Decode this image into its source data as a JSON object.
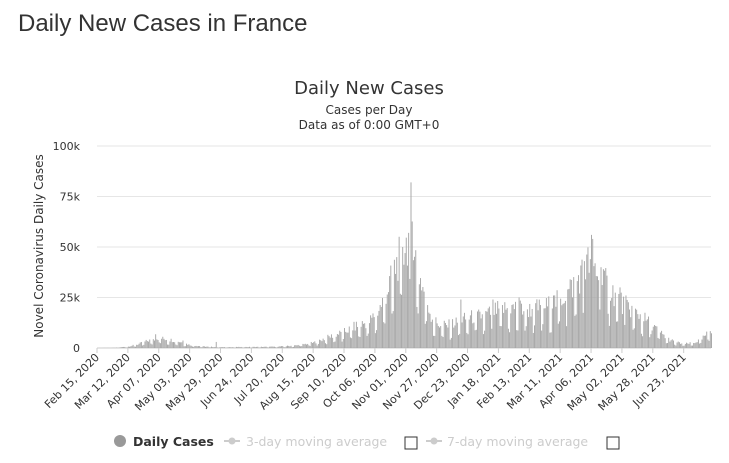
{
  "page": {
    "title": "Daily New Cases in France"
  },
  "chart_data": {
    "type": "bar",
    "title": "Daily New Cases",
    "subtitle": "Cases per Day",
    "subtitle2": "Data as of 0:00 GMT+0",
    "ylabel": "Novel Coronavirus Daily Cases",
    "xlabel": "",
    "ylim": [
      0,
      100000
    ],
    "yticks": [
      0,
      25000,
      50000,
      75000,
      100000
    ],
    "ytick_labels": [
      "0",
      "25k",
      "50k",
      "75k",
      "100k"
    ],
    "x_start": "2020-02-15",
    "x_end": "2021-07-16",
    "x_tick_labels": [
      "Feb 15, 2020",
      "Mar 12, 2020",
      "Apr 07, 2020",
      "May 03, 2020",
      "May 29, 2020",
      "Jun 24, 2020",
      "Jul 20, 2020",
      "Aug 15, 2020",
      "Sep 10, 2020",
      "Oct 06, 2020",
      "Nov 01, 2020",
      "Nov 27, 2020",
      "Dec 23, 2020",
      "Jan 18, 2021",
      "Feb 13, 2021",
      "Mar 11, 2021",
      "Apr 06, 2021",
      "May 02, 2021",
      "May 28, 2021",
      "Jun 23, 2021"
    ],
    "grid": true,
    "bar_color": "#a6a6a6",
    "series_points": [
      [
        "2020-02-15",
        0
      ],
      [
        "2020-03-01",
        100
      ],
      [
        "2020-03-12",
        700
      ],
      [
        "2020-03-20",
        1800
      ],
      [
        "2020-03-28",
        3500
      ],
      [
        "2020-04-03",
        4500
      ],
      [
        "2020-04-07",
        5000
      ],
      [
        "2020-04-15",
        4200
      ],
      [
        "2020-04-25",
        3000
      ],
      [
        "2020-05-03",
        1500
      ],
      [
        "2020-05-15",
        700
      ],
      [
        "2020-05-29",
        400
      ],
      [
        "2020-06-24",
        500
      ],
      [
        "2020-07-10",
        600
      ],
      [
        "2020-07-20",
        800
      ],
      [
        "2020-08-01",
        1300
      ],
      [
        "2020-08-15",
        2600
      ],
      [
        "2020-08-28",
        5500
      ],
      [
        "2020-09-10",
        8000
      ],
      [
        "2020-09-20",
        11000
      ],
      [
        "2020-10-01",
        13000
      ],
      [
        "2020-10-10",
        20000
      ],
      [
        "2020-10-17",
        30000
      ],
      [
        "2020-10-24",
        42000
      ],
      [
        "2020-10-31",
        50000
      ],
      [
        "2020-11-03",
        55000
      ],
      [
        "2020-11-06",
        63000
      ],
      [
        "2020-11-10",
        40000
      ],
      [
        "2020-11-16",
        28000
      ],
      [
        "2020-11-22",
        16000
      ],
      [
        "2020-11-27",
        12000
      ],
      [
        "2020-12-05",
        11000
      ],
      [
        "2020-12-15",
        13000
      ],
      [
        "2020-12-23",
        15000
      ],
      [
        "2021-01-05",
        16000
      ],
      [
        "2021-01-18",
        19000
      ],
      [
        "2021-02-01",
        20000
      ],
      [
        "2021-02-13",
        19000
      ],
      [
        "2021-03-01",
        21000
      ],
      [
        "2021-03-11",
        24000
      ],
      [
        "2021-03-20",
        30000
      ],
      [
        "2021-03-28",
        36000
      ],
      [
        "2021-04-03",
        42000
      ],
      [
        "2021-04-08",
        40000
      ],
      [
        "2021-04-15",
        34000
      ],
      [
        "2021-04-25",
        27000
      ],
      [
        "2021-05-02",
        22000
      ],
      [
        "2021-05-15",
        17000
      ],
      [
        "2021-05-28",
        11000
      ],
      [
        "2021-06-08",
        5000
      ],
      [
        "2021-06-15",
        3000
      ],
      [
        "2021-06-23",
        2000
      ],
      [
        "2021-07-01",
        2500
      ],
      [
        "2021-07-08",
        4500
      ],
      [
        "2021-07-16",
        9000
      ]
    ],
    "spikes": [
      [
        "2020-11-05",
        82000
      ],
      [
        "2020-11-03",
        57000
      ],
      [
        "2020-10-29",
        50000
      ],
      [
        "2020-10-31",
        47000
      ],
      [
        "2020-10-24",
        45000
      ],
      [
        "2020-04-04",
        6800
      ],
      [
        "2020-04-27",
        3700
      ],
      [
        "2020-05-25",
        3000
      ],
      [
        "2021-04-06",
        56000
      ],
      [
        "2021-04-07",
        54000
      ],
      [
        "2021-03-31",
        43000
      ],
      [
        "2021-04-14",
        40000
      ],
      [
        "2021-04-16",
        39000
      ],
      [
        "2021-02-04",
        25000
      ],
      [
        "2021-01-13",
        24000
      ],
      [
        "2020-12-17",
        24000
      ],
      [
        "2021-03-05",
        26000
      ],
      [
        "2021-03-17",
        29000
      ],
      [
        "2021-04-30",
        30000
      ],
      [
        "2021-05-05",
        26000
      ]
    ],
    "legend": {
      "placement": "bottom",
      "items": [
        {
          "name": "Daily Cases",
          "color": "#999999",
          "active": true
        },
        {
          "name": "3-day moving average",
          "color": "#cccccc",
          "active": false
        },
        {
          "name": "7-day moving average",
          "color": "#cccccc",
          "active": false
        }
      ]
    }
  }
}
